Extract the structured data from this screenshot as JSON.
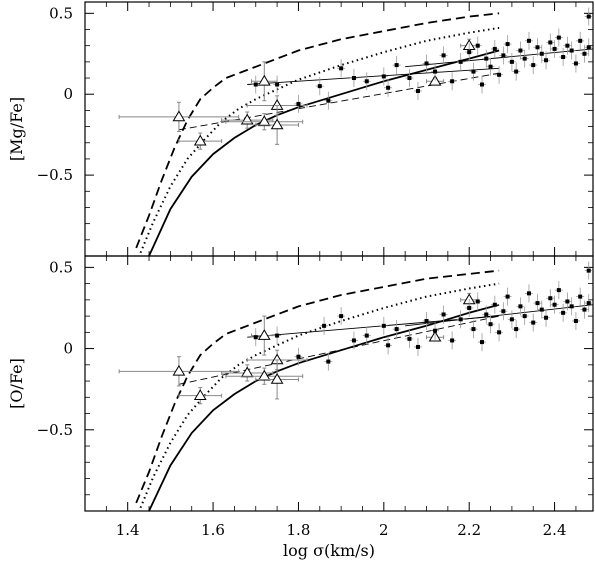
{
  "chart_data": [
    {
      "type": "scatter",
      "panel": "top",
      "ylabel": "[Mg/Fe]",
      "xlim": [
        1.3,
        2.49
      ],
      "ylim": [
        -1.0,
        0.57
      ],
      "xticks": [
        1.4,
        1.6,
        1.8,
        2.0,
        2.2,
        2.4
      ],
      "yticks": [
        0.5,
        0,
        -0.5
      ],
      "ytick_labels": [
        "0.5",
        "0",
        "−0.5"
      ],
      "models": [
        {
          "style": "dashed",
          "x": [
            1.42,
            1.45,
            1.48,
            1.51,
            1.54,
            1.57,
            1.6,
            1.63,
            1.66,
            1.72,
            1.8,
            1.9,
            2.0,
            2.1,
            2.2,
            2.27
          ],
          "y": [
            -0.95,
            -0.75,
            -0.53,
            -0.33,
            -0.16,
            -0.03,
            0.04,
            0.1,
            0.13,
            0.19,
            0.27,
            0.34,
            0.39,
            0.44,
            0.48,
            0.5
          ]
        },
        {
          "style": "dotted",
          "x": [
            1.43,
            1.46,
            1.5,
            1.54,
            1.58,
            1.62,
            1.66,
            1.7,
            1.75,
            1.8,
            1.9,
            2.0,
            2.1,
            2.2,
            2.27
          ],
          "y": [
            -0.98,
            -0.79,
            -0.57,
            -0.4,
            -0.28,
            -0.17,
            -0.09,
            -0.03,
            0.03,
            0.09,
            0.18,
            0.26,
            0.33,
            0.38,
            0.41
          ]
        },
        {
          "style": "solid",
          "x": [
            1.45,
            1.5,
            1.55,
            1.6,
            1.65,
            1.7,
            1.75,
            1.8,
            1.85,
            1.9,
            1.95,
            2.0,
            2.1,
            2.2,
            2.27
          ],
          "y": [
            -1.0,
            -0.71,
            -0.51,
            -0.37,
            -0.27,
            -0.19,
            -0.13,
            -0.08,
            -0.04,
            0.0,
            0.04,
            0.08,
            0.15,
            0.22,
            0.27
          ]
        }
      ],
      "fits": [
        {
          "style": "thin-solid",
          "x": [
            1.68,
            2.27
          ],
          "y": [
            0.06,
            0.16
          ]
        },
        {
          "style": "thin-dashed",
          "x": [
            1.52,
            2.27
          ],
          "y": [
            -0.22,
            0.13
          ]
        },
        {
          "style": "thin-solid",
          "x": [
            2.05,
            2.49
          ],
          "y": [
            0.17,
            0.28
          ]
        }
      ],
      "triangles": [
        {
          "x": 1.52,
          "y": -0.14,
          "xerr": 0.14,
          "yerr": 0.09
        },
        {
          "x": 1.57,
          "y": -0.29,
          "xerr": 0.05,
          "yerr": 0.05
        },
        {
          "x": 1.68,
          "y": -0.16,
          "xerr": 0.06,
          "yerr": 0.05
        },
        {
          "x": 1.72,
          "y": 0.08,
          "xerr": 0.03,
          "yerr": 0.12
        },
        {
          "x": 1.72,
          "y": -0.17,
          "xerr": 0.09,
          "yerr": 0.05
        },
        {
          "x": 1.75,
          "y": -0.07,
          "xerr": 0.07,
          "yerr": 0.06
        },
        {
          "x": 1.75,
          "y": -0.19,
          "xerr": 0.05,
          "yerr": 0.12
        },
        {
          "x": 2.12,
          "y": 0.08,
          "xerr": 0.02,
          "yerr": 0.02
        },
        {
          "x": 2.2,
          "y": 0.3,
          "xerr": 0.02,
          "yerr": 0.04
        }
      ],
      "points": [
        {
          "x": 1.7,
          "y": 0.06
        },
        {
          "x": 1.75,
          "y": 0.06
        },
        {
          "x": 1.8,
          "y": -0.06
        },
        {
          "x": 1.85,
          "y": 0.05
        },
        {
          "x": 1.87,
          "y": -0.04
        },
        {
          "x": 1.9,
          "y": 0.16
        },
        {
          "x": 1.93,
          "y": 0.1
        },
        {
          "x": 1.96,
          "y": 0.08
        },
        {
          "x": 2.0,
          "y": 0.11
        },
        {
          "x": 2.01,
          "y": 0.04
        },
        {
          "x": 2.03,
          "y": 0.18
        },
        {
          "x": 2.06,
          "y": 0.1
        },
        {
          "x": 2.08,
          "y": 0.02
        },
        {
          "x": 2.1,
          "y": 0.19
        },
        {
          "x": 2.12,
          "y": 0.14
        },
        {
          "x": 2.14,
          "y": 0.24
        },
        {
          "x": 2.16,
          "y": 0.08
        },
        {
          "x": 2.18,
          "y": 0.2
        },
        {
          "x": 2.2,
          "y": 0.26
        },
        {
          "x": 2.21,
          "y": 0.14
        },
        {
          "x": 2.22,
          "y": 0.3
        },
        {
          "x": 2.23,
          "y": 0.06
        },
        {
          "x": 2.24,
          "y": 0.22
        },
        {
          "x": 2.25,
          "y": 0.17
        },
        {
          "x": 2.26,
          "y": 0.28
        },
        {
          "x": 2.27,
          "y": 0.12
        },
        {
          "x": 2.28,
          "y": 0.24
        },
        {
          "x": 2.29,
          "y": 0.31
        },
        {
          "x": 2.3,
          "y": 0.2
        },
        {
          "x": 2.31,
          "y": 0.14
        },
        {
          "x": 2.32,
          "y": 0.27
        },
        {
          "x": 2.33,
          "y": 0.22
        },
        {
          "x": 2.34,
          "y": 0.33
        },
        {
          "x": 2.35,
          "y": 0.18
        },
        {
          "x": 2.36,
          "y": 0.29
        },
        {
          "x": 2.37,
          "y": 0.25
        },
        {
          "x": 2.38,
          "y": 0.21
        },
        {
          "x": 2.39,
          "y": 0.32
        },
        {
          "x": 2.4,
          "y": 0.28
        },
        {
          "x": 2.41,
          "y": 0.35
        },
        {
          "x": 2.42,
          "y": 0.23
        },
        {
          "x": 2.43,
          "y": 0.3
        },
        {
          "x": 2.44,
          "y": 0.27
        },
        {
          "x": 2.45,
          "y": 0.19
        },
        {
          "x": 2.46,
          "y": 0.33
        },
        {
          "x": 2.47,
          "y": 0.25
        },
        {
          "x": 2.48,
          "y": 0.48
        },
        {
          "x": 2.48,
          "y": 0.29
        }
      ]
    },
    {
      "type": "scatter",
      "panel": "bottom",
      "ylabel": "[O/Fe]",
      "xlabel": "log σ(km/s)",
      "xlim": [
        1.3,
        2.49
      ],
      "ylim": [
        -1.0,
        0.57
      ],
      "xticks": [
        1.4,
        1.6,
        1.8,
        2.0,
        2.2,
        2.4
      ],
      "xtick_labels": [
        "1.4",
        "1.6",
        "1.8",
        "2",
        "2.2",
        "2.4"
      ],
      "yticks": [
        0.5,
        0,
        -0.5
      ],
      "ytick_labels": [
        "0.5",
        "0",
        "−0.5"
      ],
      "models": [
        {
          "style": "dashed",
          "x": [
            1.42,
            1.45,
            1.48,
            1.51,
            1.54,
            1.57,
            1.6,
            1.63,
            1.66,
            1.72,
            1.8,
            1.9,
            2.0,
            2.1,
            2.2,
            2.27
          ],
          "y": [
            -0.95,
            -0.76,
            -0.54,
            -0.34,
            -0.17,
            -0.04,
            0.03,
            0.09,
            0.12,
            0.18,
            0.26,
            0.33,
            0.38,
            0.43,
            0.46,
            0.48
          ]
        },
        {
          "style": "dotted",
          "x": [
            1.43,
            1.46,
            1.5,
            1.54,
            1.58,
            1.62,
            1.66,
            1.7,
            1.75,
            1.8,
            1.9,
            2.0,
            2.1,
            2.2,
            2.27
          ],
          "y": [
            -0.98,
            -0.79,
            -0.58,
            -0.41,
            -0.29,
            -0.18,
            -0.1,
            -0.04,
            0.02,
            0.08,
            0.17,
            0.25,
            0.32,
            0.37,
            0.4
          ]
        },
        {
          "style": "solid",
          "x": [
            1.45,
            1.5,
            1.55,
            1.6,
            1.65,
            1.7,
            1.75,
            1.8,
            1.85,
            1.9,
            1.95,
            2.0,
            2.1,
            2.2,
            2.27
          ],
          "y": [
            -1.0,
            -0.72,
            -0.52,
            -0.38,
            -0.28,
            -0.2,
            -0.14,
            -0.09,
            -0.05,
            -0.01,
            0.03,
            0.07,
            0.14,
            0.22,
            0.27
          ]
        }
      ],
      "fits": [
        {
          "style": "thin-solid",
          "x": [
            1.68,
            2.27
          ],
          "y": [
            0.07,
            0.2
          ]
        },
        {
          "style": "thin-dashed",
          "x": [
            1.52,
            2.27
          ],
          "y": [
            -0.22,
            0.2
          ]
        },
        {
          "style": "thin-solid",
          "x": [
            2.05,
            2.49
          ],
          "y": [
            0.14,
            0.27
          ]
        }
      ],
      "triangles": [
        {
          "x": 1.52,
          "y": -0.14,
          "xerr": 0.14,
          "yerr": 0.09
        },
        {
          "x": 1.57,
          "y": -0.29,
          "xerr": 0.05,
          "yerr": 0.05
        },
        {
          "x": 1.68,
          "y": -0.15,
          "xerr": 0.06,
          "yerr": 0.05
        },
        {
          "x": 1.72,
          "y": 0.08,
          "xerr": 0.03,
          "yerr": 0.12
        },
        {
          "x": 1.72,
          "y": -0.17,
          "xerr": 0.09,
          "yerr": 0.05
        },
        {
          "x": 1.75,
          "y": -0.07,
          "xerr": 0.07,
          "yerr": 0.06
        },
        {
          "x": 1.75,
          "y": -0.19,
          "xerr": 0.05,
          "yerr": 0.12
        },
        {
          "x": 2.12,
          "y": 0.07,
          "xerr": 0.02,
          "yerr": 0.02
        },
        {
          "x": 2.2,
          "y": 0.3,
          "xerr": 0.02,
          "yerr": 0.04
        }
      ],
      "points": [
        {
          "x": 1.7,
          "y": 0.07
        },
        {
          "x": 1.75,
          "y": 0.08
        },
        {
          "x": 1.8,
          "y": -0.05
        },
        {
          "x": 1.86,
          "y": 0.14
        },
        {
          "x": 1.87,
          "y": -0.08
        },
        {
          "x": 1.9,
          "y": 0.2
        },
        {
          "x": 1.93,
          "y": 0.05
        },
        {
          "x": 1.96,
          "y": 0.08
        },
        {
          "x": 2.0,
          "y": 0.14
        },
        {
          "x": 2.01,
          "y": 0.02
        },
        {
          "x": 2.03,
          "y": 0.12
        },
        {
          "x": 2.06,
          "y": 0.06
        },
        {
          "x": 2.08,
          "y": 0.01
        },
        {
          "x": 2.1,
          "y": 0.17
        },
        {
          "x": 2.12,
          "y": 0.11
        },
        {
          "x": 2.14,
          "y": 0.21
        },
        {
          "x": 2.16,
          "y": 0.05
        },
        {
          "x": 2.18,
          "y": 0.18
        },
        {
          "x": 2.2,
          "y": 0.25
        },
        {
          "x": 2.21,
          "y": 0.12
        },
        {
          "x": 2.22,
          "y": 0.29
        },
        {
          "x": 2.23,
          "y": 0.04
        },
        {
          "x": 2.24,
          "y": 0.21
        },
        {
          "x": 2.25,
          "y": 0.15
        },
        {
          "x": 2.26,
          "y": 0.27
        },
        {
          "x": 2.27,
          "y": 0.1
        },
        {
          "x": 2.28,
          "y": 0.23
        },
        {
          "x": 2.29,
          "y": 0.32
        },
        {
          "x": 2.3,
          "y": 0.18
        },
        {
          "x": 2.31,
          "y": 0.12
        },
        {
          "x": 2.32,
          "y": 0.26
        },
        {
          "x": 2.33,
          "y": 0.2
        },
        {
          "x": 2.34,
          "y": 0.34
        },
        {
          "x": 2.35,
          "y": 0.16
        },
        {
          "x": 2.36,
          "y": 0.28
        },
        {
          "x": 2.37,
          "y": 0.24
        },
        {
          "x": 2.38,
          "y": 0.19
        },
        {
          "x": 2.39,
          "y": 0.31
        },
        {
          "x": 2.4,
          "y": 0.27
        },
        {
          "x": 2.41,
          "y": 0.36
        },
        {
          "x": 2.42,
          "y": 0.22
        },
        {
          "x": 2.43,
          "y": 0.29
        },
        {
          "x": 2.44,
          "y": 0.26
        },
        {
          "x": 2.45,
          "y": 0.17
        },
        {
          "x": 2.46,
          "y": 0.32
        },
        {
          "x": 2.47,
          "y": 0.24
        },
        {
          "x": 2.48,
          "y": 0.48
        },
        {
          "x": 2.48,
          "y": 0.28
        }
      ]
    }
  ]
}
